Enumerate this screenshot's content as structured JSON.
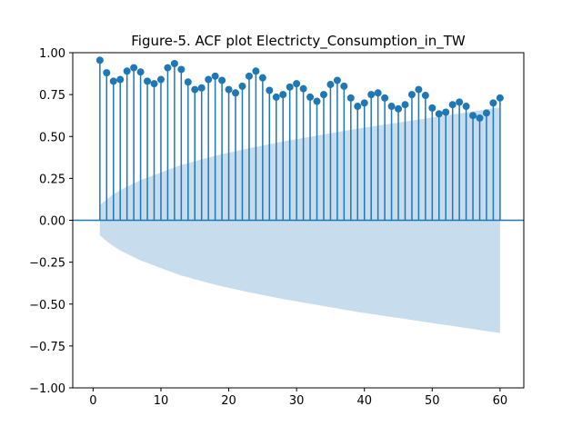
{
  "chart_data": {
    "type": "stem",
    "title": "Figure-5. ACF plot Electricty_Consumption_in_TW",
    "xlabel": "",
    "ylabel": "",
    "xlim": [
      -3,
      63.5
    ],
    "ylim": [
      -1.0,
      1.0
    ],
    "xticks": [
      0,
      10,
      20,
      30,
      40,
      50,
      60
    ],
    "yticks": [
      -1.0,
      -0.75,
      -0.5,
      -0.25,
      0.0,
      0.25,
      0.5,
      0.75,
      1.0
    ],
    "xtick_labels": [
      "0",
      "10",
      "20",
      "30",
      "40",
      "50",
      "60"
    ],
    "ytick_labels": [
      "−1.00",
      "−0.75",
      "−0.50",
      "−0.25",
      "0.00",
      "0.25",
      "0.50",
      "0.75",
      "1.00"
    ],
    "grid": false,
    "series": [
      {
        "lags": [
          1,
          2,
          3,
          4,
          5,
          6,
          7,
          8,
          9,
          10,
          11,
          12,
          13,
          14,
          15,
          16,
          17,
          18,
          19,
          20,
          21,
          22,
          23,
          24,
          25,
          26,
          27,
          28,
          29,
          30,
          31,
          32,
          33,
          34,
          35,
          36,
          37,
          38,
          39,
          40,
          41,
          42,
          43,
          44,
          45,
          46,
          47,
          48,
          49,
          50,
          51,
          52,
          53,
          54,
          55,
          56,
          57,
          58,
          59,
          60
        ],
        "values": [
          0.955,
          0.88,
          0.83,
          0.84,
          0.89,
          0.91,
          0.885,
          0.83,
          0.815,
          0.84,
          0.91,
          0.935,
          0.9,
          0.825,
          0.78,
          0.79,
          0.84,
          0.86,
          0.835,
          0.78,
          0.76,
          0.8,
          0.86,
          0.89,
          0.85,
          0.775,
          0.735,
          0.75,
          0.795,
          0.815,
          0.785,
          0.735,
          0.71,
          0.75,
          0.81,
          0.835,
          0.8,
          0.73,
          0.68,
          0.7,
          0.75,
          0.76,
          0.73,
          0.68,
          0.665,
          0.69,
          0.75,
          0.78,
          0.745,
          0.67,
          0.635,
          0.645,
          0.69,
          0.705,
          0.68,
          0.625,
          0.61,
          0.64,
          0.7,
          0.73
        ]
      }
    ],
    "confidence_band": {
      "lags": [
        1,
        2,
        3,
        4,
        5,
        6,
        7,
        8,
        9,
        10,
        11,
        12,
        13,
        14,
        15,
        16,
        17,
        18,
        19,
        20,
        21,
        22,
        23,
        24,
        25,
        26,
        27,
        28,
        29,
        30,
        31,
        32,
        33,
        34,
        35,
        36,
        37,
        38,
        39,
        40,
        41,
        42,
        43,
        44,
        45,
        46,
        47,
        48,
        49,
        50,
        51,
        52,
        53,
        54,
        55,
        56,
        57,
        58,
        59,
        60
      ],
      "halfwidth": [
        0.09,
        0.125,
        0.155,
        0.18,
        0.2,
        0.22,
        0.24,
        0.255,
        0.27,
        0.285,
        0.3,
        0.315,
        0.33,
        0.34,
        0.352,
        0.363,
        0.374,
        0.384,
        0.394,
        0.403,
        0.412,
        0.421,
        0.43,
        0.438,
        0.446,
        0.454,
        0.462,
        0.47,
        0.477,
        0.484,
        0.491,
        0.498,
        0.505,
        0.512,
        0.519,
        0.526,
        0.533,
        0.54,
        0.547,
        0.553,
        0.559,
        0.565,
        0.571,
        0.577,
        0.583,
        0.589,
        0.595,
        0.601,
        0.607,
        0.613,
        0.619,
        0.625,
        0.631,
        0.637,
        0.643,
        0.649,
        0.655,
        0.661,
        0.667,
        0.673
      ]
    },
    "colors": {
      "stem": "#1f77b4",
      "band": "#c7dcec",
      "axis": "#000000"
    }
  }
}
